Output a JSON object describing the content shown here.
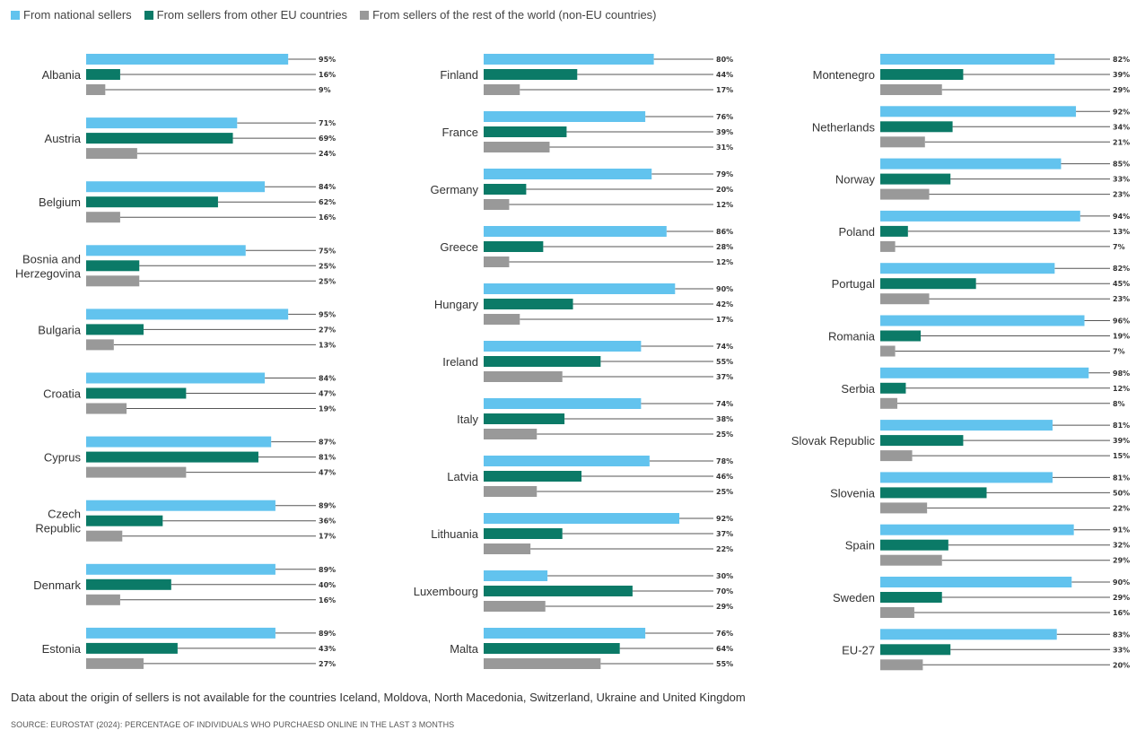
{
  "chart_data": {
    "type": "bar",
    "orientation": "horizontal",
    "unit": "%",
    "xlim": [
      0,
      100
    ],
    "grid": false,
    "legend_position": "top-left",
    "series": [
      {
        "key": "national",
        "name": "From national sellers",
        "color": "#62c3ee"
      },
      {
        "key": "eu",
        "name": "From sellers from other EU countries",
        "color": "#0b7a67"
      },
      {
        "key": "non_eu",
        "name": "From sellers of the rest of the world (non-EU countries)",
        "color": "#999999"
      }
    ],
    "columns": [
      [
        {
          "country": [
            "Albania"
          ],
          "values": [
            95,
            16,
            9
          ]
        },
        {
          "country": [
            "Austria"
          ],
          "values": [
            71,
            69,
            24
          ]
        },
        {
          "country": [
            "Belgium"
          ],
          "values": [
            84,
            62,
            16
          ]
        },
        {
          "country": [
            "Bosnia and",
            "Herzegovina"
          ],
          "values": [
            75,
            25,
            25
          ]
        },
        {
          "country": [
            "Bulgaria"
          ],
          "values": [
            95,
            27,
            13
          ]
        },
        {
          "country": [
            "Croatia"
          ],
          "values": [
            84,
            47,
            19
          ]
        },
        {
          "country": [
            "Cyprus"
          ],
          "values": [
            87,
            81,
            47
          ]
        },
        {
          "country": [
            "Czech",
            "Republic"
          ],
          "values": [
            89,
            36,
            17
          ]
        },
        {
          "country": [
            "Denmark"
          ],
          "values": [
            89,
            40,
            16
          ]
        },
        {
          "country": [
            "Estonia"
          ],
          "values": [
            89,
            43,
            27
          ]
        }
      ],
      [
        {
          "country": [
            "Finland"
          ],
          "values": [
            80,
            44,
            17
          ]
        },
        {
          "country": [
            "France"
          ],
          "values": [
            76,
            39,
            31
          ]
        },
        {
          "country": [
            "Germany"
          ],
          "values": [
            79,
            20,
            12
          ]
        },
        {
          "country": [
            "Greece"
          ],
          "values": [
            86,
            28,
            12
          ]
        },
        {
          "country": [
            "Hungary"
          ],
          "values": [
            90,
            42,
            17
          ]
        },
        {
          "country": [
            "Ireland"
          ],
          "values": [
            74,
            55,
            37
          ]
        },
        {
          "country": [
            "Italy"
          ],
          "values": [
            74,
            38,
            25
          ]
        },
        {
          "country": [
            "Latvia"
          ],
          "values": [
            78,
            46,
            25
          ]
        },
        {
          "country": [
            "Lithuania"
          ],
          "values": [
            92,
            37,
            22
          ]
        },
        {
          "country": [
            "Luxembourg"
          ],
          "values": [
            30,
            70,
            29
          ]
        },
        {
          "country": [
            "Malta"
          ],
          "values": [
            76,
            64,
            55
          ]
        }
      ],
      [
        {
          "country": [
            "Montenegro"
          ],
          "values": [
            82,
            39,
            29
          ]
        },
        {
          "country": [
            "Netherlands"
          ],
          "values": [
            92,
            34,
            21
          ]
        },
        {
          "country": [
            "Norway"
          ],
          "values": [
            85,
            33,
            23
          ]
        },
        {
          "country": [
            "Poland"
          ],
          "values": [
            94,
            13,
            7
          ]
        },
        {
          "country": [
            "Portugal"
          ],
          "values": [
            82,
            45,
            23
          ]
        },
        {
          "country": [
            "Romania"
          ],
          "values": [
            96,
            19,
            7
          ]
        },
        {
          "country": [
            "Serbia"
          ],
          "values": [
            98,
            12,
            8
          ]
        },
        {
          "country": [
            "Slovak Republic"
          ],
          "values": [
            81,
            39,
            15
          ]
        },
        {
          "country": [
            "Slovenia"
          ],
          "values": [
            81,
            50,
            22
          ]
        },
        {
          "country": [
            "Spain"
          ],
          "values": [
            91,
            32,
            29
          ]
        },
        {
          "country": [
            "Sweden"
          ],
          "values": [
            90,
            29,
            16
          ]
        },
        {
          "country": [
            "EU-27"
          ],
          "values": [
            83,
            33,
            20
          ]
        }
      ]
    ]
  },
  "footnote": "Data about the origin of sellers is not available for the countries Iceland, Moldova, North Macedonia, Switzerland, Ukraine and United Kingdom",
  "source": "SOURCE: EUROSTAT (2024): PERCENTAGE OF INDIVIDUALS WHO PURCHAESD ONLINE IN THE LAST 3 MONTHS"
}
